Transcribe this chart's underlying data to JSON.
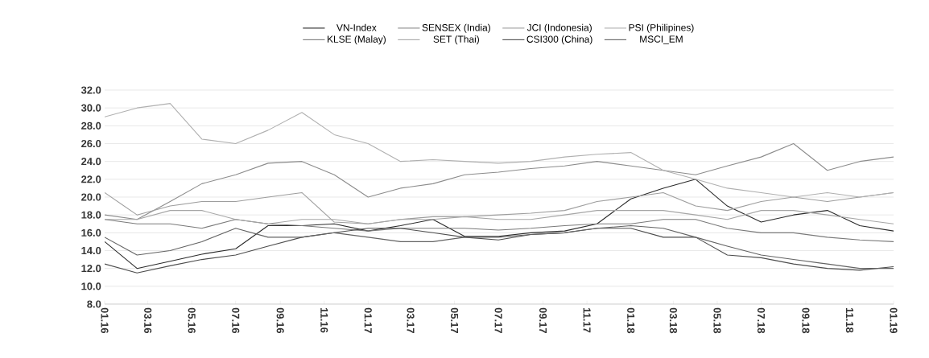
{
  "chart_data": {
    "type": "line",
    "x": [
      "2016-01-01",
      "2016-02-15",
      "2016-04-01",
      "2016-05-15",
      "2016-07-01",
      "2016-08-15",
      "2016-10-01",
      "2016-11-15",
      "2017-01-01",
      "2017-02-15",
      "2017-04-01",
      "2017-05-15",
      "2017-07-01",
      "2017-08-15",
      "2017-10-01",
      "2017-11-15",
      "2018-01-01",
      "2018-02-15",
      "2018-04-01",
      "2018-05-15",
      "2018-07-01",
      "2018-08-15",
      "2018-10-01",
      "2018-11-15",
      "2019-01-01"
    ],
    "series": [
      {
        "name": "VN-Index",
        "color": "#2b2b2b",
        "values": [
          15.0,
          12.0,
          12.8,
          13.6,
          14.2,
          16.8,
          16.8,
          17.0,
          16.2,
          16.8,
          17.5,
          15.6,
          15.6,
          16.0,
          16.2,
          17.0,
          19.8,
          21.0,
          22.0,
          19.0,
          17.2,
          18.0,
          18.5,
          16.8,
          16.2
        ]
      },
      {
        "name": "SENSEX (India)",
        "color": "#8c8c8c",
        "values": [
          18.0,
          17.5,
          19.5,
          21.5,
          22.5,
          23.8,
          24.0,
          22.5,
          20.0,
          21.0,
          21.5,
          22.5,
          22.8,
          23.2,
          23.5,
          24.0,
          23.5,
          23.0,
          22.5,
          23.5,
          24.5,
          26.0,
          23.0,
          24.0,
          24.5
        ]
      },
      {
        "name": "JCI (Indonesia)",
        "color": "#9e9e9e",
        "values": [
          20.5,
          18.0,
          19.0,
          19.5,
          19.5,
          20.0,
          20.5,
          17.2,
          17.0,
          17.5,
          17.8,
          17.8,
          18.0,
          18.2,
          18.5,
          19.5,
          20.0,
          20.5,
          19.0,
          18.5,
          19.5,
          20.0,
          19.5,
          20.0,
          20.5
        ]
      },
      {
        "name": "PSI (Philipines)",
        "color": "#b0b0b0",
        "values": [
          29.0,
          30.0,
          30.5,
          26.5,
          26.0,
          27.5,
          29.5,
          27.0,
          26.0,
          24.0,
          24.2,
          24.0,
          23.8,
          24.0,
          24.5,
          24.8,
          25.0,
          23.0,
          22.0,
          21.0,
          20.5,
          20.0,
          20.5,
          20.0,
          20.5
        ]
      },
      {
        "name": "KLSE (Malay)",
        "color": "#7a7a7a",
        "values": [
          17.5,
          17.0,
          17.0,
          16.5,
          17.5,
          17.0,
          16.8,
          16.5,
          16.2,
          16.5,
          16.5,
          16.5,
          16.3,
          16.5,
          16.8,
          17.0,
          17.0,
          17.5,
          17.5,
          16.5,
          16.0,
          16.0,
          15.5,
          15.2,
          15.0
        ]
      },
      {
        "name": "SET (Thai)",
        "color": "#a6a6a6",
        "values": [
          17.5,
          17.5,
          18.5,
          18.5,
          17.5,
          17.0,
          17.5,
          17.5,
          17.0,
          17.5,
          17.5,
          17.8,
          17.5,
          17.5,
          18.0,
          18.5,
          18.5,
          18.5,
          18.0,
          17.5,
          18.5,
          18.5,
          18.0,
          17.5,
          17.0
        ]
      },
      {
        "name": "CSI300 (China)",
        "color": "#4d4d4d",
        "values": [
          12.5,
          11.5,
          12.3,
          13.0,
          13.5,
          14.5,
          15.5,
          16.0,
          16.5,
          16.5,
          16.0,
          15.5,
          15.2,
          15.8,
          16.0,
          16.5,
          16.5,
          15.5,
          15.5,
          13.5,
          13.2,
          12.5,
          12.0,
          11.8,
          12.2
        ]
      },
      {
        "name": "MSCI_EM",
        "color": "#636363",
        "values": [
          15.5,
          13.5,
          14.0,
          15.0,
          16.5,
          15.5,
          15.5,
          16.0,
          15.5,
          15.0,
          15.0,
          15.5,
          15.5,
          15.8,
          16.0,
          16.5,
          16.8,
          16.5,
          15.5,
          14.5,
          13.5,
          13.0,
          12.5,
          12.0,
          12.0
        ]
      }
    ],
    "xlim": [
      "2016-01-01",
      "2019-01-01"
    ],
    "xticks": [
      {
        "value": "2016-01",
        "label": "01.16"
      },
      {
        "value": "2016-03",
        "label": "03.16"
      },
      {
        "value": "2016-05",
        "label": "05.16"
      },
      {
        "value": "2016-07",
        "label": "07.16"
      },
      {
        "value": "2016-09",
        "label": "09.16"
      },
      {
        "value": "2016-11",
        "label": "11.16"
      },
      {
        "value": "2017-01",
        "label": "01.17"
      },
      {
        "value": "2017-03",
        "label": "03.17"
      },
      {
        "value": "2017-05",
        "label": "05.17"
      },
      {
        "value": "2017-07",
        "label": "07.17"
      },
      {
        "value": "2017-09",
        "label": "09.17"
      },
      {
        "value": "2017-11",
        "label": "11.17"
      },
      {
        "value": "2018-01",
        "label": "01.18"
      },
      {
        "value": "2018-03",
        "label": "03.18"
      },
      {
        "value": "2018-05",
        "label": "05.18"
      },
      {
        "value": "2018-07",
        "label": "07.18"
      },
      {
        "value": "2018-09",
        "label": "09.18"
      },
      {
        "value": "2018-11",
        "label": "11.18"
      },
      {
        "value": "2019-01",
        "label": "01.19"
      }
    ],
    "ylim": [
      8,
      32
    ],
    "yticks": [
      {
        "value": 8,
        "label": "8.0"
      },
      {
        "value": 10,
        "label": "10.0"
      },
      {
        "value": 12,
        "label": "12.0"
      },
      {
        "value": 14,
        "label": "14.0"
      },
      {
        "value": 16,
        "label": "16.0"
      },
      {
        "value": 18,
        "label": "18.0"
      },
      {
        "value": 20,
        "label": "20.0"
      },
      {
        "value": 22,
        "label": "22.0"
      },
      {
        "value": 24,
        "label": "24.0"
      },
      {
        "value": 26,
        "label": "26.0"
      },
      {
        "value": 28,
        "label": "28.0"
      },
      {
        "value": 30,
        "label": "30.0"
      },
      {
        "value": 32,
        "label": "32.0"
      }
    ],
    "grid": "y",
    "legend": "top",
    "marker": "none",
    "line_style": "solid"
  }
}
